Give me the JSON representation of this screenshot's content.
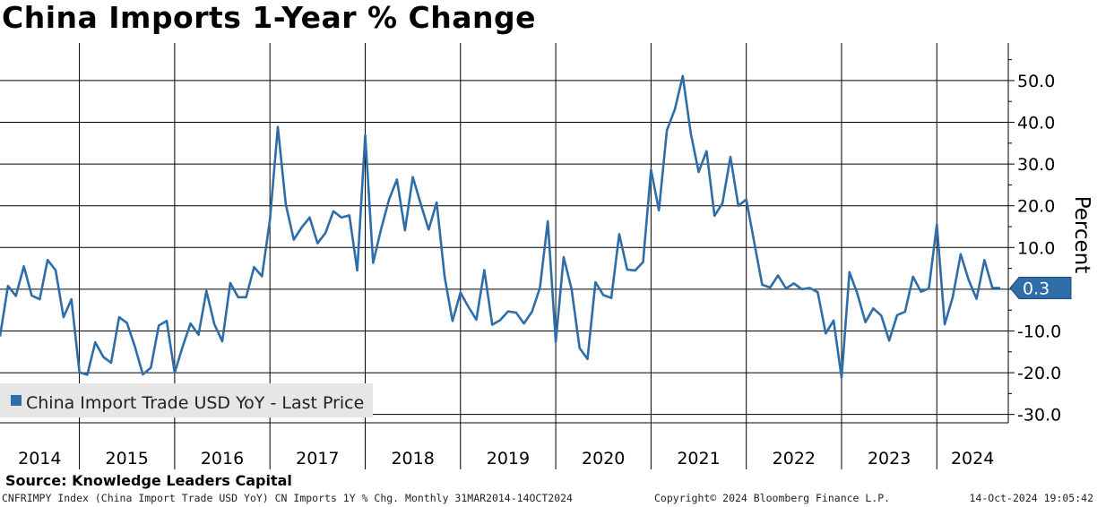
{
  "title": "China Imports 1-Year % Change",
  "source": "Source: Knowledge Leaders Capital",
  "footer": {
    "left": "CNFRIMPY Index (China Import Trade USD YoY) CN Imports 1Y % Chg.  Monthly 31MAR2014-14OCT2024",
    "middle": "Copyright© 2024 Bloomberg Finance L.P.",
    "right": "14-Oct-2024 19:05:42"
  },
  "colors": {
    "line": "#2E6DA8",
    "grid": "#000000",
    "legend_bg": "#E6E6E6"
  },
  "chart_data": {
    "type": "line",
    "ylabel": "Percent",
    "ylim": [
      -32,
      59
    ],
    "yticks": [
      50,
      40,
      30,
      20,
      10,
      0,
      -10,
      -20,
      -30
    ],
    "ytick_labels": [
      "50.0",
      "40.0",
      "30.0",
      "20.0",
      "10.0",
      "",
      "-10.0",
      "-20.0",
      "-30.0"
    ],
    "x_start": "2014-03",
    "x_end": "2024-10",
    "year_labels": [
      "2014",
      "2015",
      "2016",
      "2017",
      "2018",
      "2019",
      "2020",
      "2021",
      "2022",
      "2023",
      "2024"
    ],
    "legend": "China Import Trade USD YoY - Last Price",
    "last_value": 0.3,
    "last_value_label": "0.3",
    "series": [
      {
        "name": "China Import Trade USD YoY",
        "start": "2014-03",
        "values": [
          -11.3,
          0.8,
          -1.6,
          5.5,
          -1.5,
          -2.4,
          7.0,
          4.6,
          -6.7,
          -2.4,
          -19.9,
          -20.5,
          -12.7,
          -16.2,
          -17.6,
          -6.7,
          -8.1,
          -13.8,
          -20.4,
          -18.8,
          -8.7,
          -7.6,
          -20.0,
          -13.8,
          -8.2,
          -10.9,
          -0.4,
          -8.4,
          -12.5,
          1.5,
          -1.9,
          -1.9,
          5.3,
          3.1,
          16.7,
          38.9,
          20.3,
          11.9,
          14.8,
          17.2,
          11.0,
          13.5,
          18.7,
          17.2,
          17.7,
          4.5,
          36.9,
          6.3,
          14.4,
          21.5,
          26.3,
          14.1,
          26.9,
          20.4,
          14.3,
          20.8,
          3.0,
          -7.6,
          -0.8,
          -4.2,
          -7.3,
          4.6,
          -8.5,
          -7.4,
          -5.3,
          -5.6,
          -8.2,
          -5.4,
          0.3,
          16.3,
          -12.6,
          7.7,
          0.0,
          -14.1,
          -16.7,
          1.7,
          -1.4,
          -2.1,
          13.2,
          4.7,
          4.5,
          6.5,
          28.6,
          18.9,
          38.1,
          43.1,
          51.1,
          37.4,
          28.1,
          33.1,
          17.6,
          20.6,
          31.7,
          20.0,
          21.5,
          11.3,
          1.1,
          0.4,
          3.3,
          0.2,
          1.4,
          0.0,
          0.3,
          -0.7,
          -10.6,
          -7.5,
          -21.2,
          4.1,
          -1.1,
          -7.9,
          -4.6,
          -6.3,
          -12.3,
          -6.2,
          -5.4,
          3.0,
          -0.6,
          0.2,
          15.5,
          -8.4,
          -1.9,
          8.4,
          2.3,
          -2.3,
          7.0,
          0.3,
          0.3
        ]
      }
    ]
  }
}
